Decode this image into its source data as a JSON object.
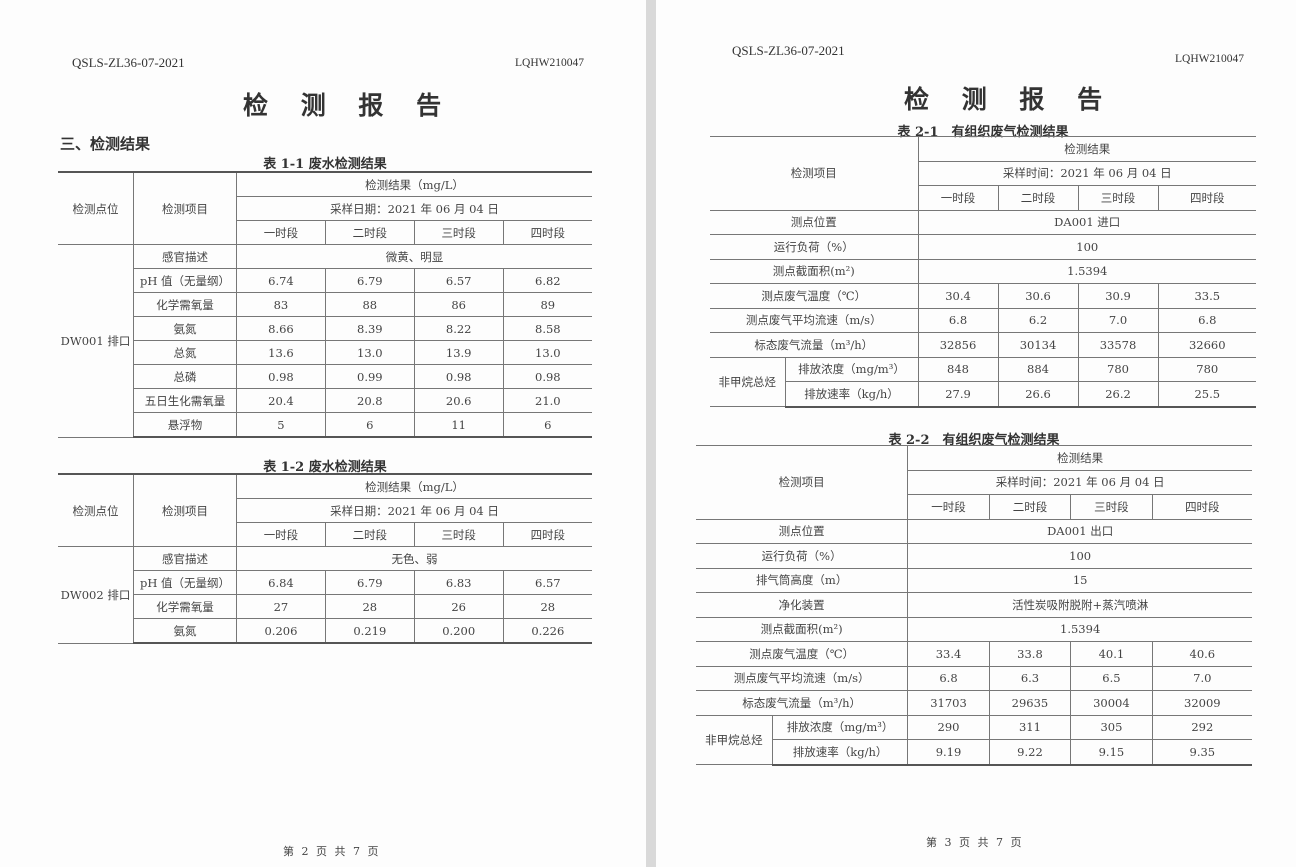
{
  "page_left": {
    "doc_code": "QSLS-ZL36-07-2021",
    "report_no": "LQHW210047",
    "title": "检 测 报 告",
    "section": "三、检测结果",
    "footer": "第 2 页 共 7 页",
    "tables": [
      {
        "caption": "表 1-1 废水检测结果",
        "col_point": "检测点位",
        "col_item": "检测项目",
        "result_header": "检测结果（mg/L）",
        "sampling": "采样日期：2021 年 06 月 04 日",
        "periods": [
          "一时段",
          "二时段",
          "三时段",
          "四时段"
        ],
        "point": "DW001 排口",
        "rows": [
          {
            "item": "感官描述",
            "merged": "微黄、明显"
          },
          {
            "item": "pH 值（无量纲）",
            "values": [
              "6.74",
              "6.79",
              "6.57",
              "6.82"
            ]
          },
          {
            "item": "化学需氧量",
            "values": [
              "83",
              "88",
              "86",
              "89"
            ]
          },
          {
            "item": "氨氮",
            "values": [
              "8.66",
              "8.39",
              "8.22",
              "8.58"
            ]
          },
          {
            "item": "总氮",
            "values": [
              "13.6",
              "13.0",
              "13.9",
              "13.0"
            ]
          },
          {
            "item": "总磷",
            "values": [
              "0.98",
              "0.99",
              "0.98",
              "0.98"
            ]
          },
          {
            "item": "五日生化需氧量",
            "values": [
              "20.4",
              "20.8",
              "20.6",
              "21.0"
            ]
          },
          {
            "item": "悬浮物",
            "values": [
              "5",
              "6",
              "11",
              "6"
            ]
          }
        ]
      },
      {
        "caption": "表 1-2 废水检测结果",
        "col_point": "检测点位",
        "col_item": "检测项目",
        "result_header": "检测结果（mg/L）",
        "sampling": "采样日期：2021 年 06 月 04 日",
        "periods": [
          "一时段",
          "二时段",
          "三时段",
          "四时段"
        ],
        "point": "DW002 排口",
        "rows": [
          {
            "item": "感官描述",
            "merged": "无色、弱"
          },
          {
            "item": "pH 值（无量纲）",
            "values": [
              "6.84",
              "6.79",
              "6.83",
              "6.57"
            ]
          },
          {
            "item": "化学需氧量",
            "values": [
              "27",
              "28",
              "26",
              "28"
            ]
          },
          {
            "item": "氨氮",
            "values": [
              "0.206",
              "0.219",
              "0.200",
              "0.226"
            ]
          }
        ]
      }
    ]
  },
  "page_right": {
    "doc_code": "QSLS-ZL36-07-2021",
    "report_no": "LQHW210047",
    "title": "检 测 报 告",
    "footer": "第 3 页 共 7 页",
    "tables": [
      {
        "caption": "表 2-1　有组织废气检测结果",
        "col_item": "检测项目",
        "result_header": "检测结果",
        "sampling": "采样时间：2021 年 06 月 04 日",
        "periods": [
          "一时段",
          "二时段",
          "三时段",
          "四时段"
        ],
        "rows": [
          {
            "item": "测点位置",
            "merged": "DA001 进口"
          },
          {
            "item": "运行负荷（%）",
            "merged": "100"
          },
          {
            "item": "测点截面积(m²)",
            "merged": "1.5394"
          },
          {
            "item": "测点废气温度（℃）",
            "values": [
              "30.4",
              "30.6",
              "30.9",
              "33.5"
            ]
          },
          {
            "item": "测点废气平均流速（m/s）",
            "values": [
              "6.8",
              "6.2",
              "7.0",
              "6.8"
            ]
          },
          {
            "item": "标态废气流量（m³/h）",
            "values": [
              "32856",
              "30134",
              "33578",
              "32660"
            ]
          },
          {
            "group": "非甲烷总烃",
            "item": "排放浓度（mg/m³）",
            "values": [
              "848",
              "884",
              "780",
              "780"
            ]
          },
          {
            "item": "排放速率（kg/h）",
            "values": [
              "27.9",
              "26.6",
              "26.2",
              "25.5"
            ]
          }
        ]
      },
      {
        "caption": "表 2-2　有组织废气检测结果",
        "col_item": "检测项目",
        "result_header": "检测结果",
        "sampling": "采样时间：2021 年 06 月 04 日",
        "periods": [
          "一时段",
          "二时段",
          "三时段",
          "四时段"
        ],
        "rows": [
          {
            "item": "测点位置",
            "merged": "DA001 出口"
          },
          {
            "item": "运行负荷（%）",
            "merged": "100"
          },
          {
            "item": "排气筒高度（m）",
            "merged": "15"
          },
          {
            "item": "净化装置",
            "merged": "活性炭吸附脱附+蒸汽喷淋"
          },
          {
            "item": "测点截面积(m²)",
            "merged": "1.5394"
          },
          {
            "item": "测点废气温度（℃）",
            "values": [
              "33.4",
              "33.8",
              "40.1",
              "40.6"
            ]
          },
          {
            "item": "测点废气平均流速（m/s）",
            "values": [
              "6.8",
              "6.3",
              "6.5",
              "7.0"
            ]
          },
          {
            "item": "标态废气流量（m³/h）",
            "values": [
              "31703",
              "29635",
              "30004",
              "32009"
            ]
          },
          {
            "group": "非甲烷总烃",
            "item": "排放浓度（mg/m³）",
            "values": [
              "290",
              "311",
              "305",
              "292"
            ]
          },
          {
            "item": "排放速率（kg/h）",
            "values": [
              "9.19",
              "9.22",
              "9.15",
              "9.35"
            ]
          }
        ]
      }
    ]
  }
}
